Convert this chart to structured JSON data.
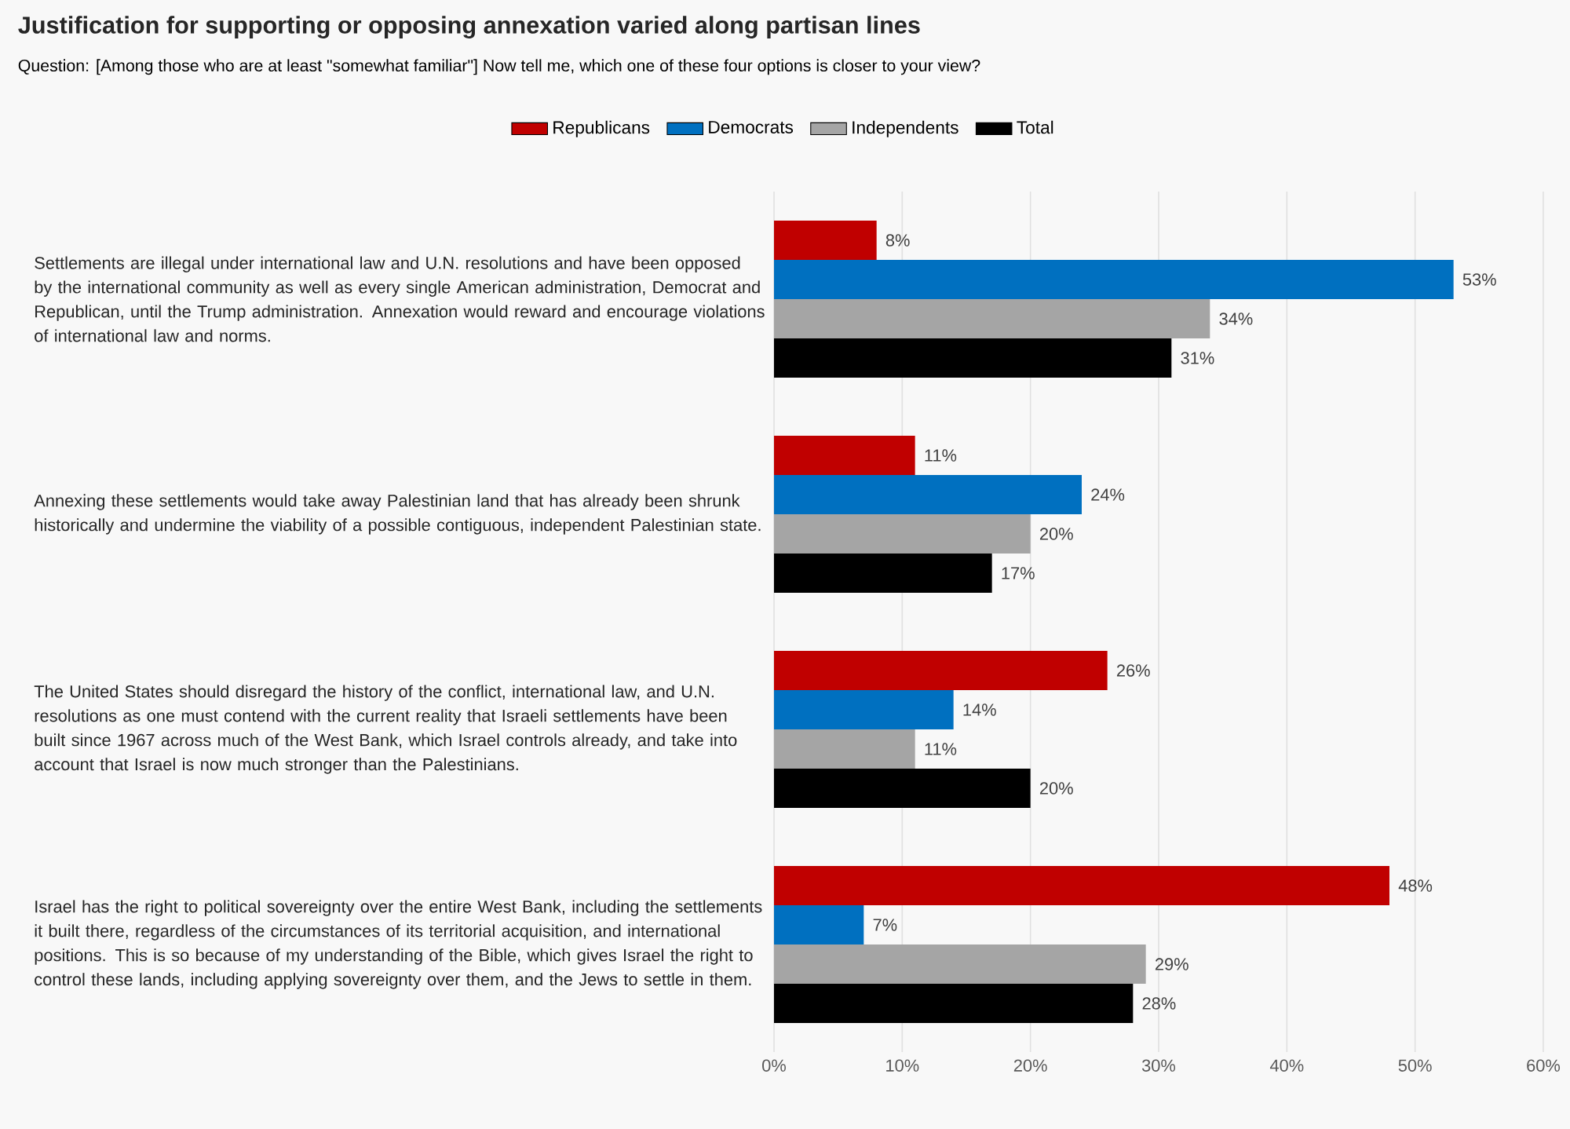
{
  "chart_data": {
    "type": "bar",
    "orientation": "horizontal",
    "title": "Justification for supporting or opposing annexation varied along partisan lines",
    "subtitle": "Question: [Among those who are at least \"somewhat familiar\"] Now tell me, which one of these four options is closer to your view?",
    "categories": [
      "Settlements are illegal under international law and U.N. resolutions and have been opposed by the international community as well as every single American administration, Democrat and Republican, until the Trump administration. Annexation would reward and encourage violations of international law and norms.",
      "Annexing these settlements would take away Palestinian land that has already been shrunk historically and undermine the viability of a possible contiguous, independent Palestinian state.",
      "The United States should disregard the history of the conflict, international law, and U.N. resolutions as one must contend with the current reality that Israeli settlements have been built since 1967 across much of the West Bank, which Israel controls already, and take into account that Israel is now much stronger than the Palestinians.",
      "Israel has the right to political sovereignty over the entire West Bank, including the settlements it built there, regardless of the circumstances of its territorial acquisition, and international positions. This is so because of my understanding of the Bible, which gives Israel the right to control these lands, including applying sovereignty over them, and the Jews to settle in them."
    ],
    "series": [
      {
        "name": "Republicans",
        "color": "#c00000",
        "values": [
          8,
          11,
          26,
          48
        ],
        "value_labels": [
          "8%",
          "11%",
          "26%",
          "48%"
        ]
      },
      {
        "name": "Democrats",
        "color": "#0070c0",
        "values": [
          53,
          24,
          14,
          7
        ],
        "value_labels": [
          "53%",
          "24%",
          "14%",
          "7%"
        ]
      },
      {
        "name": "Independents",
        "color": "#a5a5a5",
        "values": [
          34,
          20,
          11,
          29
        ],
        "value_labels": [
          "34%",
          "20%",
          "11%",
          "29%"
        ]
      },
      {
        "name": "Total",
        "color": "#000000",
        "values": [
          31,
          17,
          20,
          28
        ],
        "value_labels": [
          "31%",
          "17%",
          "20%",
          "28%"
        ]
      }
    ],
    "xlim": [
      0,
      60
    ],
    "xticks": [
      {
        "value": 0,
        "label": "0%"
      },
      {
        "value": 10,
        "label": "10%"
      },
      {
        "value": 20,
        "label": "20%"
      },
      {
        "value": 30,
        "label": "30%"
      },
      {
        "value": 40,
        "label": "40%"
      },
      {
        "value": 50,
        "label": "50%"
      },
      {
        "value": 60,
        "label": "60%"
      }
    ],
    "grid": "x",
    "legend": "top"
  }
}
